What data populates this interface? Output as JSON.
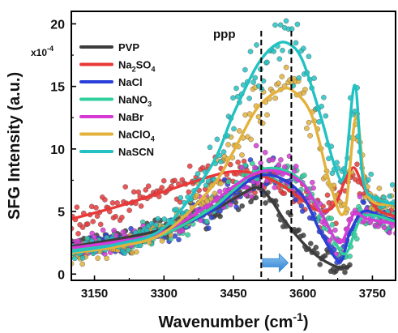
{
  "chart_data": {
    "type": "scatter",
    "annotation": "ppp",
    "y_multiplier": "x10",
    "y_multiplier_exp": "-4",
    "xlabel": "Wavenumber (cm",
    "xlabel_sup": "-1",
    "xlabel_end": ")",
    "ylabel": "SFG Intensity (a.u.)",
    "xlim": [
      3100,
      3800
    ],
    "ylim": [
      -0.5,
      21
    ],
    "x_ticks": [
      3150,
      3300,
      3450,
      3600,
      3750
    ],
    "y_ticks": [
      0,
      5,
      10,
      15,
      20
    ],
    "grid": false,
    "legend_position": "top-left",
    "vlines": [
      3510,
      3575
    ],
    "shift_arrow": {
      "from": 3513,
      "to": 3568,
      "color": "#3a8fd8"
    },
    "series": [
      {
        "name": "PVP",
        "name_main": "PVP",
        "name_sub": "",
        "name_end": "",
        "color": "#3c3c3c",
        "x": [
          3100,
          3200,
          3300,
          3400,
          3450,
          3500,
          3530,
          3560,
          3600,
          3640,
          3680,
          3700
        ],
        "y": [
          2.2,
          2.8,
          3.6,
          5.0,
          6.0,
          6.9,
          6.0,
          4.3,
          2.5,
          1.2,
          0.5,
          0.6
        ]
      },
      {
        "name": "Na2SO4",
        "name_main": "Na",
        "name_sub": "2",
        "name_end": "SO",
        "name_sub2": "4",
        "color": "#e83838",
        "x": [
          3100,
          3200,
          3300,
          3400,
          3450,
          3500,
          3550,
          3600,
          3640,
          3670,
          3690,
          3710,
          3730,
          3760,
          3800
        ],
        "y": [
          4.4,
          5.4,
          6.6,
          7.8,
          8.2,
          8.0,
          7.2,
          5.9,
          5.0,
          5.6,
          7.4,
          8.5,
          7.0,
          5.2,
          4.6
        ]
      },
      {
        "name": "NaCl",
        "name_main": "NaCl",
        "name_sub": "",
        "name_end": "",
        "color": "#2a3fd8",
        "x": [
          3100,
          3200,
          3300,
          3400,
          3450,
          3500,
          3550,
          3600,
          3640,
          3680,
          3700,
          3730,
          3770,
          3800
        ],
        "y": [
          2.0,
          2.5,
          3.3,
          5.0,
          6.5,
          7.8,
          7.7,
          6.2,
          3.2,
          1.0,
          3.2,
          5.0,
          4.6,
          4.3
        ]
      },
      {
        "name": "NaNO3",
        "name_main": "NaNO",
        "name_sub": "3",
        "name_end": "",
        "color": "#2fcf9e",
        "x": [
          3100,
          3200,
          3300,
          3400,
          3450,
          3500,
          3550,
          3600,
          3650,
          3690,
          3730,
          3800
        ],
        "y": [
          1.9,
          2.4,
          3.2,
          5.2,
          6.7,
          8.2,
          8.4,
          7.3,
          4.2,
          1.6,
          4.6,
          4.2
        ]
      },
      {
        "name": "NaBr",
        "name_main": "NaBr",
        "name_sub": "",
        "name_end": "",
        "color": "#d63ad6",
        "x": [
          3100,
          3200,
          3300,
          3400,
          3450,
          3500,
          3550,
          3600,
          3640,
          3680,
          3710,
          3740,
          3800
        ],
        "y": [
          2.1,
          2.6,
          3.4,
          5.6,
          7.0,
          8.1,
          8.2,
          7.2,
          4.8,
          2.5,
          4.8,
          4.4,
          4.0
        ]
      },
      {
        "name": "NaClO4",
        "name_main": "NaClO",
        "name_sub": "4",
        "name_end": "",
        "color": "#e3b23c",
        "x": [
          3100,
          3200,
          3300,
          3400,
          3450,
          3500,
          3550,
          3580,
          3620,
          3660,
          3690,
          3715,
          3740,
          3800
        ],
        "y": [
          1.7,
          2.2,
          3.3,
          6.8,
          9.8,
          13.2,
          14.7,
          14.6,
          12.6,
          7.0,
          5.0,
          12.6,
          6.3,
          5.6
        ]
      },
      {
        "name": "NaSCN",
        "name_main": "NaSCN",
        "name_sub": "",
        "name_end": "",
        "color": "#22c2c2",
        "x": [
          3100,
          3200,
          3300,
          3400,
          3450,
          3500,
          3540,
          3570,
          3600,
          3640,
          3670,
          3690,
          3712,
          3730,
          3760,
          3800
        ],
        "y": [
          1.8,
          2.4,
          3.7,
          8.5,
          12.8,
          16.6,
          18.3,
          18.4,
          17.0,
          12.4,
          8.5,
          8.0,
          15.1,
          7.5,
          6.0,
          5.6
        ]
      }
    ]
  }
}
